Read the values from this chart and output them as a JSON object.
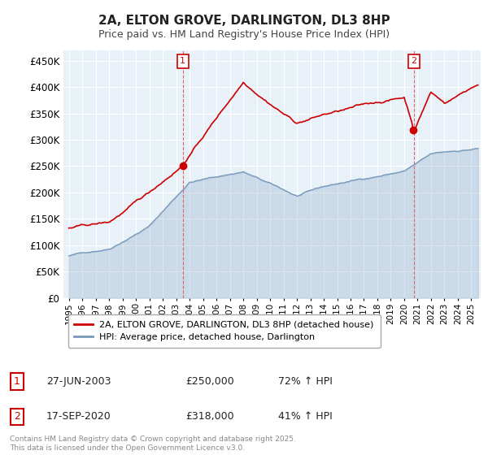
{
  "title": "2A, ELTON GROVE, DARLINGTON, DL3 8HP",
  "subtitle": "Price paid vs. HM Land Registry's House Price Index (HPI)",
  "ylim": [
    0,
    470000
  ],
  "yticks": [
    0,
    50000,
    100000,
    150000,
    200000,
    250000,
    300000,
    350000,
    400000,
    450000
  ],
  "ytick_labels": [
    "£0",
    "£50K",
    "£100K",
    "£150K",
    "£200K",
    "£250K",
    "£300K",
    "£350K",
    "£400K",
    "£450K"
  ],
  "red_color": "#cc0000",
  "blue_color": "#7799bb",
  "blue_fill_color": "#dde8f0",
  "vline_color": "#dd6666",
  "marker1_year": 2003.5,
  "marker1_price": 250000,
  "marker2_year": 2020.71,
  "marker2_price": 318000,
  "annotation1": [
    "1",
    "27-JUN-2003",
    "£250,000",
    "72% ↑ HPI"
  ],
  "annotation2": [
    "2",
    "17-SEP-2020",
    "£318,000",
    "41% ↑ HPI"
  ],
  "legend_line1": "2A, ELTON GROVE, DARLINGTON, DL3 8HP (detached house)",
  "legend_line2": "HPI: Average price, detached house, Darlington",
  "copyright": "Contains HM Land Registry data © Crown copyright and database right 2025.\nThis data is licensed under the Open Government Licence v3.0.",
  "background_color": "#ffffff",
  "chart_bg_color": "#e8f0f8",
  "grid_color": "#ffffff"
}
